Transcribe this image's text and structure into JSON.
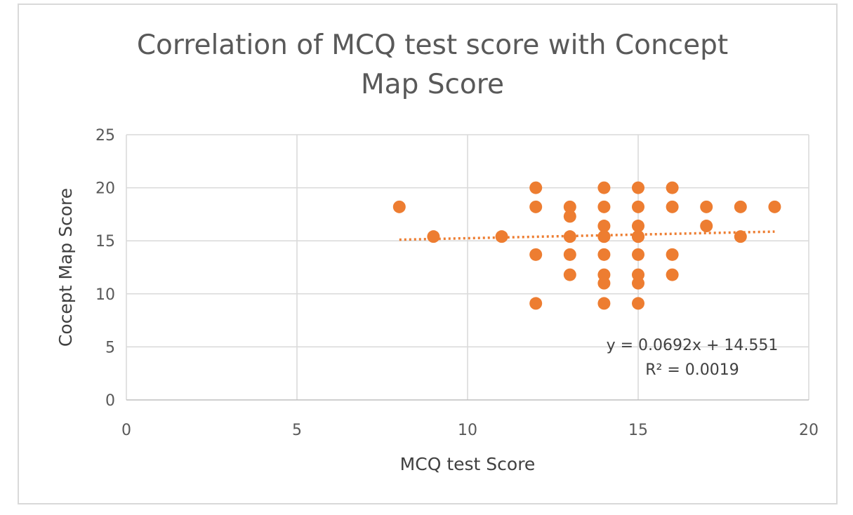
{
  "chart_data": {
    "type": "scatter",
    "title_lines": [
      "Correlation of MCQ test score with Concept",
      "Map Score"
    ],
    "xlabel": "MCQ test Score",
    "ylabel": "Cocept Map Score",
    "xlim": [
      0,
      20
    ],
    "ylim": [
      0,
      25
    ],
    "x_ticks": [
      0,
      5,
      10,
      15,
      20
    ],
    "y_ticks": [
      0,
      5,
      10,
      15,
      20,
      25
    ],
    "x_tick_labels": [
      "0",
      "5",
      "10",
      "15",
      "20"
    ],
    "y_tick_labels": [
      "0",
      "5",
      "10",
      "15",
      "20",
      "25"
    ],
    "grid": true,
    "marker_color": "#ed7d31",
    "trendline_color": "#ed7d31",
    "series": [
      {
        "x": [
          8,
          9,
          11,
          12,
          12,
          12,
          12,
          13,
          13,
          13,
          13,
          13,
          14,
          14,
          14,
          14,
          14,
          14,
          14,
          14,
          14,
          15,
          15,
          15,
          15,
          15,
          15,
          15,
          15,
          15,
          16,
          16,
          16,
          16,
          17,
          17,
          18,
          18,
          19
        ],
        "y": [
          18.2,
          15.4,
          15.4,
          20,
          18.2,
          13.7,
          9.1,
          18.2,
          17.3,
          15.4,
          13.7,
          11.8,
          20,
          18.2,
          16.4,
          15.4,
          13.7,
          11.8,
          11,
          9.1,
          15.4,
          20,
          18.2,
          16.4,
          15.4,
          13.7,
          11.8,
          11,
          9.1,
          15.4,
          20,
          18.2,
          13.7,
          11.8,
          18.2,
          16.4,
          18.2,
          15.4,
          18.2
        ]
      }
    ],
    "trendline": {
      "type": "linear",
      "slope": 0.0692,
      "intercept": 14.551,
      "x_range": [
        8,
        19
      ],
      "equation_label": "y = 0.0692x + 14.551",
      "r2_label": "R² = 0.0019"
    }
  }
}
